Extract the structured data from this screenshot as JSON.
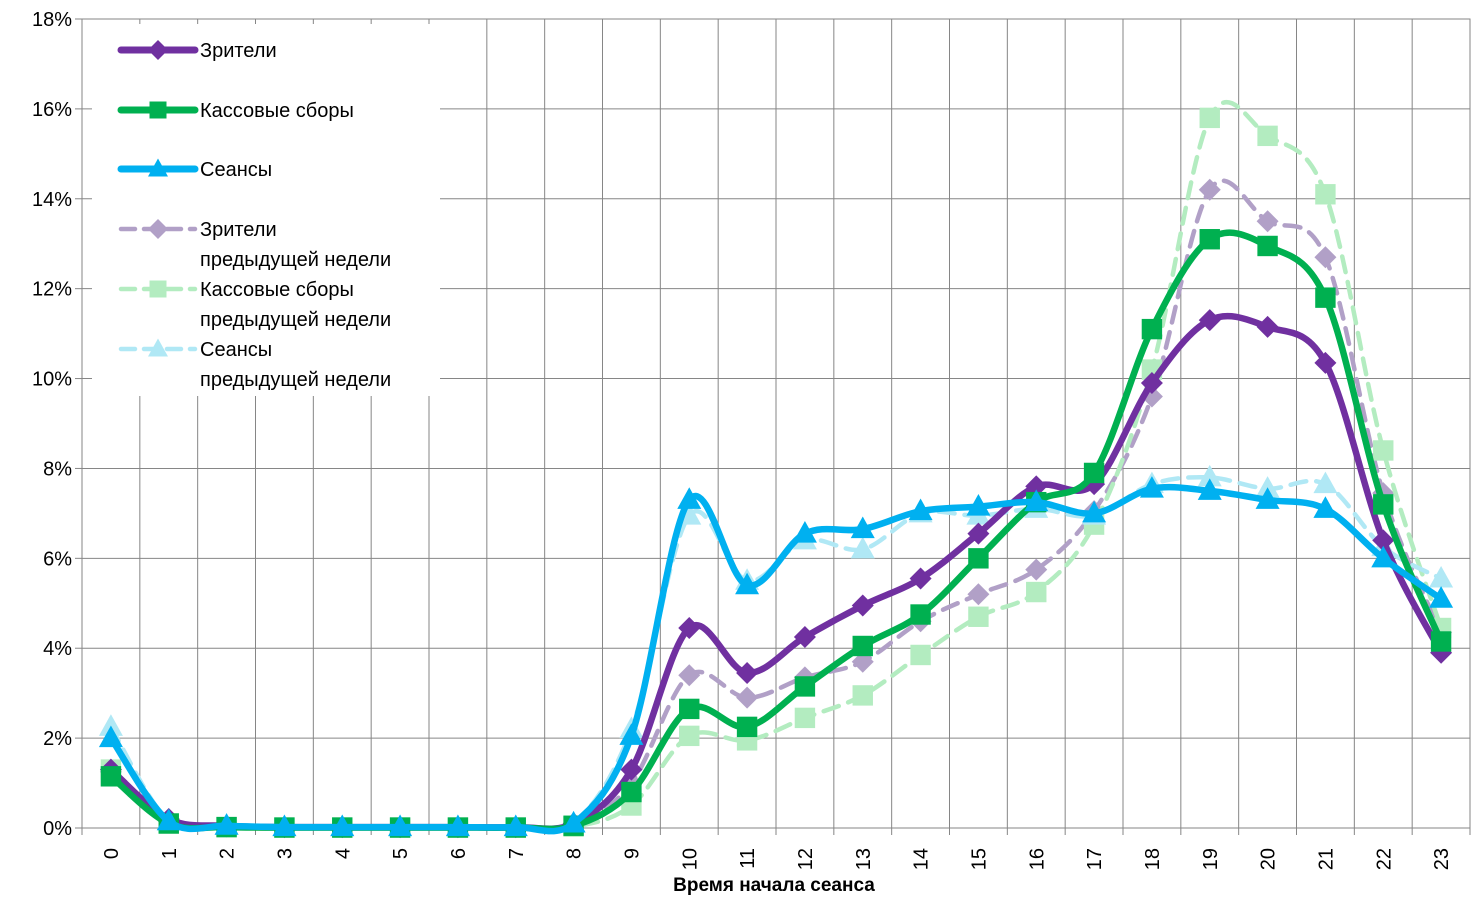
{
  "chart_data": {
    "type": "line",
    "title": "",
    "xlabel": "Время начала сеанса",
    "ylabel": "",
    "x": [
      "0",
      "1",
      "2",
      "3",
      "4",
      "5",
      "6",
      "7",
      "8",
      "9",
      "10",
      "11",
      "12",
      "13",
      "14",
      "15",
      "16",
      "17",
      "18",
      "19",
      "20",
      "21",
      "22",
      "23"
    ],
    "ylim": [
      0,
      18
    ],
    "yticks": [
      "0%",
      "2%",
      "4%",
      "6%",
      "8%",
      "10%",
      "12%",
      "14%",
      "16%",
      "18%"
    ],
    "grid": true,
    "legend_position": "top-left",
    "series": [
      {
        "name": "Зрители",
        "color": "#7030a0",
        "style": "solid",
        "marker": "diamond",
        "values": [
          1.3,
          0.2,
          0.05,
          0.02,
          0.02,
          0.02,
          0.02,
          0.02,
          0.1,
          1.3,
          4.45,
          3.45,
          4.25,
          4.95,
          5.55,
          6.55,
          7.6,
          7.65,
          9.9,
          11.3,
          11.15,
          10.35,
          6.4,
          3.9
        ]
      },
      {
        "name": "Кассовые сборы",
        "color": "#00b050",
        "style": "solid",
        "marker": "square",
        "values": [
          1.15,
          0.1,
          0.02,
          0.01,
          0.01,
          0.01,
          0.01,
          0.01,
          0.05,
          0.8,
          2.65,
          2.25,
          3.15,
          4.05,
          4.75,
          6.0,
          7.25,
          7.9,
          11.1,
          13.1,
          12.95,
          11.8,
          7.2,
          4.15
        ]
      },
      {
        "name": "Сеансы",
        "color": "#00b0f0",
        "style": "solid",
        "marker": "triangle",
        "values": [
          2.0,
          0.15,
          0.05,
          0.02,
          0.02,
          0.02,
          0.02,
          0.02,
          0.1,
          2.05,
          7.3,
          5.4,
          6.55,
          6.65,
          7.05,
          7.15,
          7.25,
          7.0,
          7.55,
          7.5,
          7.3,
          7.1,
          6.0,
          5.1
        ]
      },
      {
        "name": "Зрители предыдущей недели",
        "color": "#b1a0c7",
        "style": "dashed",
        "marker": "diamond",
        "values": [
          1.25,
          0.15,
          0.03,
          0.02,
          0.02,
          0.02,
          0.02,
          0.02,
          0.05,
          1.0,
          3.4,
          2.9,
          3.35,
          3.7,
          4.6,
          5.2,
          5.75,
          7.05,
          9.6,
          14.2,
          13.5,
          12.7,
          7.45,
          4.35
        ]
      },
      {
        "name": "Кассовые сборы предыдущей недели",
        "color": "#b3ecc0",
        "style": "dashed",
        "marker": "square",
        "values": [
          1.3,
          0.1,
          0.02,
          0.01,
          0.01,
          0.01,
          0.01,
          0.01,
          0.03,
          0.5,
          2.05,
          1.95,
          2.45,
          2.95,
          3.85,
          4.7,
          5.25,
          6.75,
          10.2,
          15.8,
          15.4,
          14.1,
          8.4,
          4.45
        ]
      },
      {
        "name": "Сеансы предыдущей недели",
        "color": "#b0e8f5",
        "style": "dashed",
        "marker": "triangle",
        "values": [
          2.25,
          0.15,
          0.05,
          0.02,
          0.02,
          0.02,
          0.02,
          0.02,
          0.1,
          2.2,
          6.95,
          5.5,
          6.4,
          6.2,
          7.0,
          6.95,
          7.1,
          6.95,
          7.65,
          7.8,
          7.55,
          7.65,
          6.25,
          5.55
        ]
      }
    ]
  },
  "legend": {
    "items": [
      [
        "Зрители"
      ],
      [
        "Кассовые сборы"
      ],
      [
        "Сеансы"
      ],
      [
        "Зрители",
        "предыдущей недели"
      ],
      [
        "Кассовые сборы",
        "предыдущей недели"
      ],
      [
        "Сеансы",
        "предыдущей недели"
      ]
    ]
  }
}
